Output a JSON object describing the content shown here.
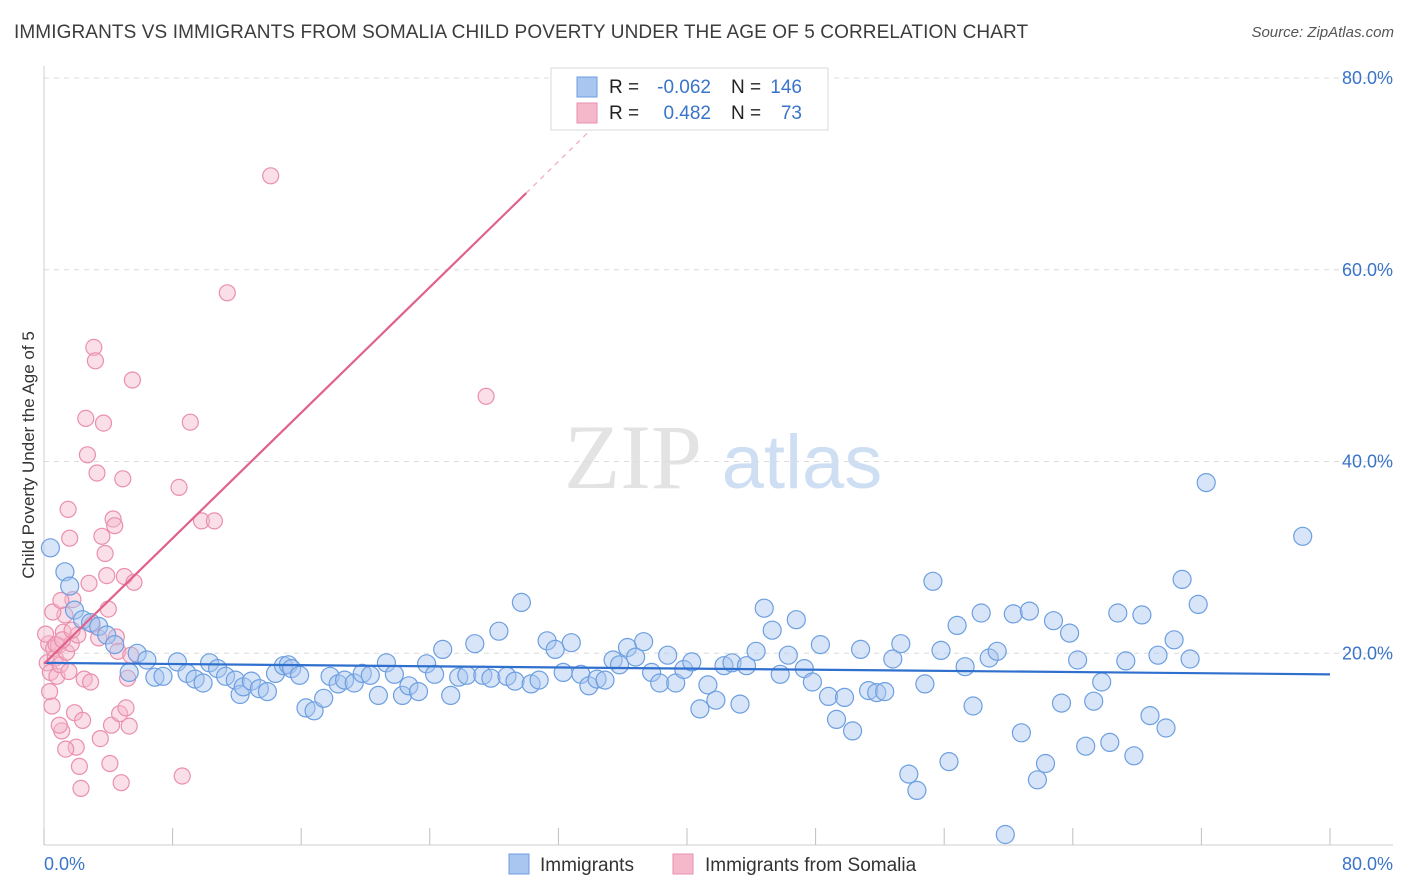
{
  "title": "IMMIGRANTS VS IMMIGRANTS FROM SOMALIA CHILD POVERTY UNDER THE AGE OF 5 CORRELATION CHART",
  "source": "Source: ZipAtlas.com",
  "watermark": {
    "zip": "ZIP",
    "atlas": "atlas"
  },
  "legend_top": [
    {
      "r_label": "R =",
      "r_value": "-0.062",
      "n_label": "N =",
      "n_value": "146"
    },
    {
      "r_label": "R =",
      "r_value": "0.482",
      "n_label": "N =",
      "n_value": "73"
    }
  ],
  "colors": {
    "blue_fill": "#a9c6f0",
    "blue_stroke": "#6d9fe0",
    "blue_line": "#2f6fcd",
    "pink_fill": "#f5b8cb",
    "pink_stroke": "#ea8fac",
    "pink_line": "#e0628b",
    "tick_blue": "#3a74c9"
  },
  "chart_data": {
    "type": "scatter",
    "title": "IMMIGRANTS VS IMMIGRANTS FROM SOMALIA CHILD POVERTY UNDER THE AGE OF 5 CORRELATION CHART",
    "xlabel": "",
    "ylabel": "Child Poverty Under the Age of 5",
    "xlim": [
      0,
      80
    ],
    "ylim": [
      0,
      80
    ],
    "x_tick_labels": [
      "0.0%",
      "80.0%"
    ],
    "y_tick_labels": [
      "20.0%",
      "40.0%",
      "60.0%",
      "80.0%"
    ],
    "y_ticks": [
      20,
      40,
      60,
      80
    ],
    "grid": true,
    "legend_position": "bottom",
    "series": [
      {
        "name": "Immigrants",
        "r": -0.062,
        "n": 146,
        "trend": {
          "x": [
            0,
            80
          ],
          "y": [
            19.0,
            17.8
          ]
        },
        "points": [
          [
            0.4,
            31
          ],
          [
            1.3,
            28.5
          ],
          [
            1.6,
            27
          ],
          [
            1.9,
            24.5
          ],
          [
            2.4,
            23.5
          ],
          [
            2.9,
            23.2
          ],
          [
            3.4,
            22.8
          ],
          [
            3.9,
            21.9
          ],
          [
            4.4,
            20.9
          ],
          [
            5.3,
            18
          ],
          [
            5.8,
            20
          ],
          [
            6.4,
            19.3
          ],
          [
            6.9,
            17.5
          ],
          [
            7.4,
            17.6
          ],
          [
            8.3,
            19.1
          ],
          [
            8.9,
            17.9
          ],
          [
            9.4,
            17.3
          ],
          [
            9.9,
            16.9
          ],
          [
            10.3,
            19
          ],
          [
            10.8,
            18.4
          ],
          [
            11.3,
            17.6
          ],
          [
            11.9,
            17.2
          ],
          [
            12.2,
            15.7
          ],
          [
            12.4,
            16.5
          ],
          [
            12.9,
            17.1
          ],
          [
            13.4,
            16.3
          ],
          [
            13.9,
            16
          ],
          [
            14.4,
            17.9
          ],
          [
            14.9,
            18.7
          ],
          [
            15.2,
            18.8
          ],
          [
            15.4,
            18.4
          ],
          [
            15.9,
            17.7
          ],
          [
            16.3,
            14.3
          ],
          [
            16.8,
            14
          ],
          [
            17.4,
            15.3
          ],
          [
            17.8,
            17.6
          ],
          [
            18.3,
            16.8
          ],
          [
            18.7,
            17.2
          ],
          [
            19.3,
            16.9
          ],
          [
            19.8,
            17.9
          ],
          [
            20.3,
            17.7
          ],
          [
            20.8,
            15.6
          ],
          [
            21.3,
            19
          ],
          [
            21.8,
            17.8
          ],
          [
            22.3,
            15.6
          ],
          [
            22.7,
            16.6
          ],
          [
            23.3,
            16
          ],
          [
            23.8,
            18.9
          ],
          [
            24.3,
            17.8
          ],
          [
            24.8,
            20.4
          ],
          [
            25.3,
            15.6
          ],
          [
            25.8,
            17.5
          ],
          [
            26.3,
            17.7
          ],
          [
            26.8,
            21
          ],
          [
            27.3,
            17.7
          ],
          [
            27.8,
            17.4
          ],
          [
            28.3,
            22.3
          ],
          [
            28.8,
            17.6
          ],
          [
            29.3,
            17.1
          ],
          [
            29.7,
            25.3
          ],
          [
            30.3,
            16.8
          ],
          [
            30.8,
            17.2
          ],
          [
            31.3,
            21.3
          ],
          [
            31.8,
            20.4
          ],
          [
            32.3,
            18
          ],
          [
            32.8,
            21.1
          ],
          [
            33.4,
            17.8
          ],
          [
            33.9,
            16.6
          ],
          [
            34.4,
            17.3
          ],
          [
            34.9,
            17.2
          ],
          [
            35.4,
            19.3
          ],
          [
            35.8,
            18.8
          ],
          [
            36.3,
            20.6
          ],
          [
            36.8,
            19.6
          ],
          [
            37.3,
            21.2
          ],
          [
            37.8,
            18
          ],
          [
            38.3,
            16.9
          ],
          [
            38.8,
            19.8
          ],
          [
            39.3,
            16.9
          ],
          [
            39.8,
            18.3
          ],
          [
            40.3,
            19.1
          ],
          [
            40.8,
            14.2
          ],
          [
            41.3,
            16.7
          ],
          [
            41.8,
            15.1
          ],
          [
            42.3,
            18.7
          ],
          [
            42.8,
            19
          ],
          [
            43.3,
            14.7
          ],
          [
            43.7,
            18.7
          ],
          [
            44.3,
            20.2
          ],
          [
            44.8,
            24.7
          ],
          [
            45.3,
            22.4
          ],
          [
            45.8,
            17.8
          ],
          [
            46.3,
            19.8
          ],
          [
            46.8,
            23.5
          ],
          [
            47.3,
            18.4
          ],
          [
            47.8,
            17
          ],
          [
            48.3,
            20.9
          ],
          [
            48.8,
            15.5
          ],
          [
            49.3,
            13.1
          ],
          [
            49.8,
            15.4
          ],
          [
            50.3,
            11.9
          ],
          [
            50.8,
            20.4
          ],
          [
            51.3,
            16.1
          ],
          [
            51.8,
            15.9
          ],
          [
            52.3,
            16
          ],
          [
            52.8,
            19.4
          ],
          [
            53.3,
            21
          ],
          [
            53.8,
            7.4
          ],
          [
            54.3,
            5.7
          ],
          [
            54.8,
            16.8
          ],
          [
            55.3,
            27.5
          ],
          [
            55.8,
            20.3
          ],
          [
            56.3,
            8.7
          ],
          [
            56.8,
            22.9
          ],
          [
            57.3,
            18.6
          ],
          [
            57.8,
            14.5
          ],
          [
            58.3,
            24.2
          ],
          [
            58.8,
            19.5
          ],
          [
            59.3,
            20.2
          ],
          [
            59.8,
            1.1
          ],
          [
            60.3,
            24.1
          ],
          [
            60.8,
            11.7
          ],
          [
            61.3,
            24.4
          ],
          [
            61.8,
            6.8
          ],
          [
            62.3,
            8.5
          ],
          [
            62.8,
            23.4
          ],
          [
            63.3,
            14.8
          ],
          [
            63.8,
            22.1
          ],
          [
            64.3,
            19.3
          ],
          [
            64.8,
            10.3
          ],
          [
            65.3,
            15
          ],
          [
            65.8,
            17
          ],
          [
            66.3,
            10.7
          ],
          [
            66.8,
            24.2
          ],
          [
            67.3,
            19.2
          ],
          [
            67.8,
            9.3
          ],
          [
            68.3,
            24
          ],
          [
            68.8,
            13.5
          ],
          [
            69.3,
            19.8
          ],
          [
            69.8,
            12.2
          ],
          [
            70.3,
            21.4
          ],
          [
            70.8,
            27.7
          ],
          [
            71.3,
            19.4
          ],
          [
            71.8,
            25.1
          ],
          [
            72.3,
            37.8
          ],
          [
            78.3,
            32.2
          ]
        ]
      },
      {
        "name": "Immigrants from Somalia",
        "r": 0.482,
        "n": 73,
        "trend": {
          "x": [
            0,
            30
          ],
          "y": [
            18.9,
            68.0
          ]
        },
        "trend_dashed": {
          "x": [
            30,
            34.5
          ],
          "y": [
            68.0,
            75.4
          ]
        },
        "points": [
          [
            0.2,
            19
          ],
          [
            0.3,
            21
          ],
          [
            0.4,
            18
          ],
          [
            0.5,
            14.5
          ],
          [
            0.6,
            20.5
          ],
          [
            0.7,
            19.5
          ],
          [
            0.8,
            17.6
          ],
          [
            0.9,
            20.8
          ],
          [
            1,
            18.8
          ],
          [
            1.1,
            11.9
          ],
          [
            1.2,
            22.2
          ],
          [
            1.3,
            24
          ],
          [
            1.4,
            20.1
          ],
          [
            1.5,
            35
          ],
          [
            1.6,
            32
          ],
          [
            1.7,
            21
          ],
          [
            1.8,
            25.6
          ],
          [
            1.9,
            13.8
          ],
          [
            2,
            10.2
          ],
          [
            2.1,
            21.9
          ],
          [
            2.2,
            8.2
          ],
          [
            2.3,
            5.9
          ],
          [
            2.4,
            13
          ],
          [
            2.5,
            17.3
          ],
          [
            2.6,
            44.5
          ],
          [
            2.7,
            40.7
          ],
          [
            2.8,
            27.3
          ],
          [
            2.9,
            17
          ],
          [
            3,
            23
          ],
          [
            3.1,
            51.9
          ],
          [
            3.2,
            50.5
          ],
          [
            3.3,
            38.8
          ],
          [
            3.4,
            21.6
          ],
          [
            3.5,
            11.1
          ],
          [
            3.6,
            32.2
          ],
          [
            3.7,
            44
          ],
          [
            3.8,
            30.4
          ],
          [
            3.9,
            28.1
          ],
          [
            4,
            24.6
          ],
          [
            4.1,
            8.5
          ],
          [
            4.2,
            12.5
          ],
          [
            4.3,
            34
          ],
          [
            4.4,
            33.3
          ],
          [
            4.5,
            21.7
          ],
          [
            4.6,
            20.2
          ],
          [
            4.7,
            13.7
          ],
          [
            4.8,
            6.5
          ],
          [
            4.9,
            38.2
          ],
          [
            5,
            28
          ],
          [
            5.1,
            14.3
          ],
          [
            5.2,
            17.4
          ],
          [
            5.3,
            12.4
          ],
          [
            5.4,
            19.8
          ],
          [
            5.5,
            48.5
          ],
          [
            5.6,
            27.4
          ],
          [
            0.1,
            22
          ],
          [
            0.35,
            16
          ],
          [
            0.55,
            24.3
          ],
          [
            0.75,
            20.9
          ],
          [
            0.95,
            12.5
          ],
          [
            1.05,
            25.5
          ],
          [
            1.15,
            21.4
          ],
          [
            1.35,
            10
          ],
          [
            1.55,
            18.1
          ],
          [
            1.75,
            22.4
          ],
          [
            8.4,
            37.3
          ],
          [
            8.6,
            7.2
          ],
          [
            9.1,
            44.1
          ],
          [
            9.8,
            33.8
          ],
          [
            10.6,
            33.8
          ],
          [
            11.4,
            57.6
          ],
          [
            14.1,
            69.8
          ],
          [
            27.5,
            46.8
          ]
        ]
      }
    ]
  }
}
